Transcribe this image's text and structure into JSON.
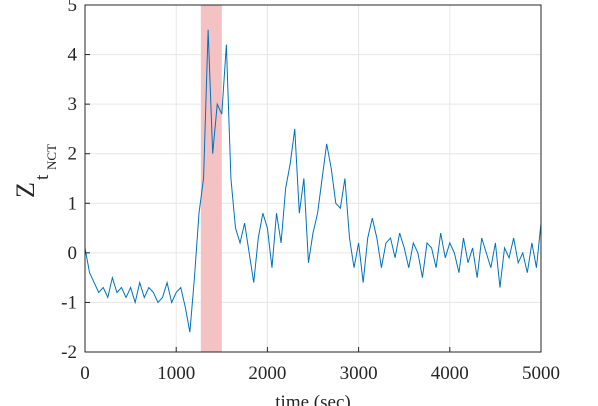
{
  "chart_data": {
    "type": "line",
    "xlabel": "time (sec)",
    "ylabel": [
      "Z",
      "t",
      "NCT"
    ],
    "x": [
      0,
      50,
      100,
      150,
      200,
      250,
      300,
      350,
      400,
      450,
      500,
      550,
      600,
      650,
      700,
      750,
      800,
      850,
      900,
      950,
      1000,
      1050,
      1100,
      1150,
      1200,
      1250,
      1300,
      1350,
      1400,
      1450,
      1500,
      1550,
      1600,
      1650,
      1700,
      1750,
      1800,
      1850,
      1900,
      1950,
      2000,
      2050,
      2100,
      2150,
      2200,
      2250,
      2300,
      2350,
      2400,
      2450,
      2500,
      2550,
      2600,
      2650,
      2700,
      2750,
      2800,
      2850,
      2900,
      2950,
      3000,
      3050,
      3100,
      3150,
      3200,
      3250,
      3300,
      3350,
      3400,
      3450,
      3500,
      3550,
      3600,
      3650,
      3700,
      3750,
      3800,
      3850,
      3900,
      3950,
      4000,
      4050,
      4100,
      4150,
      4200,
      4250,
      4300,
      4350,
      4400,
      4450,
      4500,
      4550,
      4600,
      4650,
      4700,
      4750,
      4800,
      4850,
      4900,
      4950,
      5000
    ],
    "series": [
      {
        "color": "#0072bd",
        "values": [
          0.1,
          -0.4,
          -0.6,
          -0.8,
          -0.7,
          -0.9,
          -0.5,
          -0.8,
          -0.7,
          -0.9,
          -0.7,
          -1.0,
          -0.6,
          -0.9,
          -0.7,
          -0.8,
          -1.0,
          -0.9,
          -0.6,
          -1.0,
          -0.8,
          -0.7,
          -1.1,
          -1.6,
          -0.5,
          0.8,
          1.5,
          4.5,
          2.0,
          3.0,
          2.8,
          4.2,
          1.5,
          0.5,
          0.2,
          0.6,
          0.0,
          -0.6,
          0.3,
          0.8,
          0.5,
          -0.3,
          0.8,
          0.2,
          1.3,
          1.8,
          2.5,
          0.8,
          1.5,
          -0.2,
          0.4,
          0.8,
          1.5,
          2.2,
          1.7,
          1.0,
          0.9,
          1.5,
          0.3,
          -0.3,
          0.2,
          -0.6,
          0.3,
          0.7,
          0.3,
          -0.3,
          0.2,
          0.3,
          -0.1,
          0.4,
          0.1,
          -0.3,
          0.2,
          0.0,
          -0.5,
          0.2,
          0.1,
          -0.3,
          0.4,
          -0.1,
          0.2,
          0.0,
          -0.4,
          0.3,
          -0.2,
          0.1,
          -0.5,
          0.3,
          0.0,
          -0.3,
          0.2,
          -0.7,
          0.1,
          -0.1,
          0.3,
          -0.2,
          0.0,
          -0.4,
          0.2,
          -0.3,
          0.6
        ]
      }
    ],
    "highlight": {
      "range": [
        1270,
        1500
      ],
      "color": "#f4c2c2"
    },
    "xlim": [
      0,
      5000
    ],
    "xticks": [
      0,
      1000,
      2000,
      3000,
      4000,
      5000
    ],
    "ylim": [
      -2,
      5
    ],
    "yticks": [
      -2,
      -1,
      0,
      1,
      2,
      3,
      4,
      5
    ],
    "grid": true
  }
}
